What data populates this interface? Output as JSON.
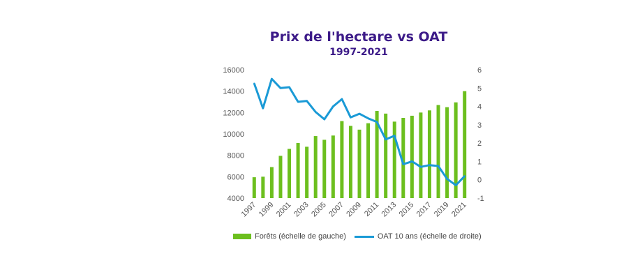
{
  "title": "Prix de l'hectare vs OAT",
  "subtitle": "1997-2021",
  "colors": {
    "bars": "#6cbf1e",
    "line": "#1a9ad6",
    "title": "#3c1a88"
  },
  "chart_data": {
    "type": "bar",
    "title": "Prix de l'hectare vs OAT",
    "subtitle": "1997-2021",
    "categories": [
      "1997",
      "1998",
      "1999",
      "2000",
      "2001",
      "2002",
      "2003",
      "2004",
      "2005",
      "2006",
      "2007",
      "2008",
      "2009",
      "2010",
      "2011",
      "2012",
      "2013",
      "2014",
      "2015",
      "2016",
      "2017",
      "2018",
      "2019",
      "2020",
      "2021"
    ],
    "x_tick_labels": [
      "1997",
      "1999",
      "2001",
      "2003",
      "2005",
      "2007",
      "2009",
      "2011",
      "2013",
      "2015",
      "2017",
      "2019",
      "2021"
    ],
    "series": [
      {
        "name": "Forêts (échelle de gauche)",
        "type": "bar",
        "axis": "left",
        "values": [
          5950,
          6000,
          6900,
          7950,
          8600,
          9150,
          8800,
          9800,
          9450,
          9850,
          11200,
          10750,
          10400,
          11000,
          12150,
          11900,
          11150,
          11500,
          11700,
          12000,
          12200,
          12700,
          12500,
          12950,
          14000
        ]
      },
      {
        "name": "OAT 10 ans (échelle de droite)",
        "type": "line",
        "axis": "right",
        "values": [
          5.25,
          3.9,
          5.5,
          5.0,
          5.05,
          4.25,
          4.3,
          3.7,
          3.3,
          4.0,
          4.4,
          3.4,
          3.6,
          3.35,
          3.15,
          2.2,
          2.4,
          0.85,
          1.0,
          0.7,
          0.8,
          0.75,
          0.05,
          -0.3,
          0.2
        ]
      }
    ],
    "y_left": {
      "ylim": [
        4000,
        16000
      ],
      "ticks": [
        "4000",
        "6000",
        "8000",
        "10000",
        "12000",
        "14000",
        "16000"
      ]
    },
    "y_right": {
      "ylim": [
        -1,
        6
      ],
      "ticks": [
        "-1",
        "0",
        "1",
        "2",
        "3",
        "4",
        "5",
        "6"
      ]
    },
    "legend": {
      "position": "bottom"
    },
    "grid": false
  }
}
